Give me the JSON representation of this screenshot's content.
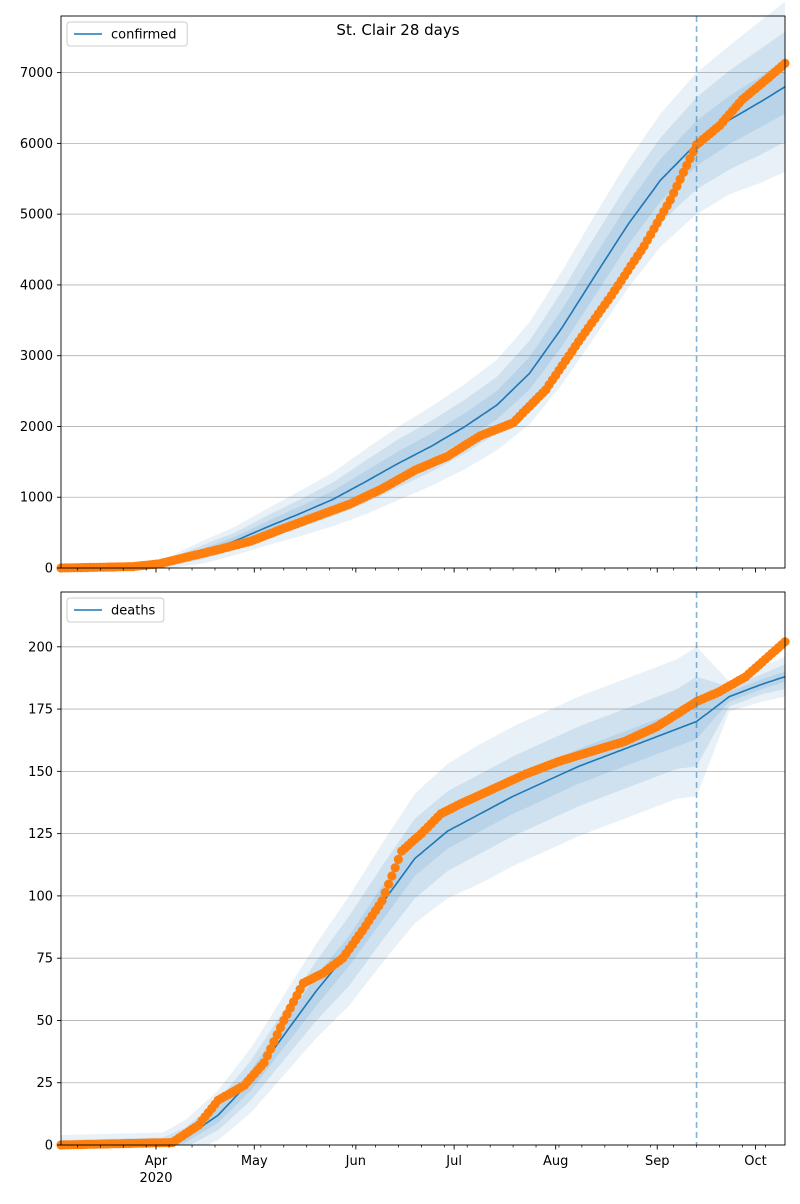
{
  "title": "St. Clair 28 days",
  "colors": {
    "model": "#1f77b4",
    "observed": "#ff7f0e",
    "band": "#1f77b4",
    "forecast_line": "#1f77b4",
    "grid": "#b0b0b0"
  },
  "x_axis": {
    "date_range": [
      "2020-03-03",
      "2020-10-10"
    ],
    "forecast_start": "2020-09-13",
    "month_ticks": [
      {
        "date": "2020-04-01",
        "label": "Apr",
        "sublabel": "2020"
      },
      {
        "date": "2020-05-01",
        "label": "May",
        "sublabel": ""
      },
      {
        "date": "2020-06-01",
        "label": "Jun",
        "sublabel": ""
      },
      {
        "date": "2020-07-01",
        "label": "Jul",
        "sublabel": ""
      },
      {
        "date": "2020-08-01",
        "label": "Aug",
        "sublabel": ""
      },
      {
        "date": "2020-09-01",
        "label": "Sep",
        "sublabel": ""
      },
      {
        "date": "2020-10-01",
        "label": "Oct",
        "sublabel": ""
      }
    ]
  },
  "chart_data": [
    {
      "type": "line",
      "name": "confirmed",
      "legend": "confirmed",
      "legend_position": "upper-left",
      "grid": "horizontal",
      "ylim": [
        0,
        7800
      ],
      "yticks": [
        0,
        1000,
        2000,
        3000,
        4000,
        5000,
        6000,
        7000
      ],
      "model": {
        "dates": [
          "2020-03-03",
          "2020-03-25",
          "2020-04-05",
          "2020-04-15",
          "2020-04-25",
          "2020-05-05",
          "2020-05-15",
          "2020-05-25",
          "2020-06-04",
          "2020-06-14",
          "2020-06-24",
          "2020-07-04",
          "2020-07-14",
          "2020-07-24",
          "2020-08-03",
          "2020-08-13",
          "2020-08-23",
          "2020-09-02",
          "2020-09-13",
          "2020-09-23",
          "2020-10-03",
          "2020-10-10"
        ],
        "values": [
          0,
          20,
          80,
          220,
          380,
          580,
          770,
          970,
          1220,
          1480,
          1720,
          1990,
          2300,
          2750,
          3400,
          4130,
          4850,
          5480,
          6000,
          6330,
          6600,
          6800
        ],
        "band_widths": [
          [
            5,
            10,
            25,
            50,
            60,
            80,
            100,
            120,
            150,
            170,
            180,
            190,
            200,
            230,
            260,
            280,
            290,
            300,
            320,
            340,
            360,
            380
          ],
          [
            10,
            20,
            50,
            100,
            120,
            160,
            200,
            240,
            300,
            340,
            360,
            380,
            400,
            460,
            520,
            560,
            580,
            600,
            650,
            700,
            750,
            780
          ],
          [
            15,
            30,
            80,
            160,
            200,
            260,
            320,
            380,
            460,
            520,
            560,
            600,
            640,
            720,
            800,
            860,
            900,
            940,
            1000,
            1050,
            1150,
            1200
          ]
        ]
      },
      "observed": {
        "dates": [
          "2020-03-03",
          "2020-03-25",
          "2020-04-02",
          "2020-04-10",
          "2020-04-20",
          "2020-04-30",
          "2020-05-10",
          "2020-05-20",
          "2020-05-30",
          "2020-06-09",
          "2020-06-19",
          "2020-06-29",
          "2020-07-09",
          "2020-07-19",
          "2020-07-29",
          "2020-08-08",
          "2020-08-18",
          "2020-08-28",
          "2020-09-05",
          "2020-09-13",
          "2020-09-20",
          "2020-09-27",
          "2020-10-04",
          "2020-10-10"
        ],
        "values": [
          0,
          20,
          60,
          150,
          260,
          380,
          560,
          730,
          900,
          1120,
          1380,
          1580,
          1870,
          2050,
          2520,
          3200,
          3850,
          4550,
          5200,
          5980,
          6250,
          6620,
          6890,
          7130
        ]
      }
    },
    {
      "type": "line",
      "name": "deaths",
      "legend": "deaths",
      "legend_position": "upper-left",
      "grid": "horizontal",
      "ylim": [
        0,
        222
      ],
      "yticks": [
        0,
        25,
        50,
        75,
        100,
        125,
        150,
        175,
        200
      ],
      "model": {
        "dates": [
          "2020-03-03",
          "2020-04-03",
          "2020-04-10",
          "2020-04-20",
          "2020-04-30",
          "2020-05-10",
          "2020-05-20",
          "2020-05-30",
          "2020-06-09",
          "2020-06-19",
          "2020-06-29",
          "2020-07-09",
          "2020-07-19",
          "2020-07-29",
          "2020-08-08",
          "2020-08-18",
          "2020-08-28",
          "2020-09-07",
          "2020-09-13",
          "2020-09-23",
          "2020-10-03",
          "2020-10-10"
        ],
        "values": [
          0,
          0,
          3,
          12,
          26,
          44,
          62,
          78,
          97,
          115,
          126,
          133,
          140,
          146,
          152,
          157,
          162,
          167,
          170,
          180,
          185,
          188
        ],
        "band_widths": [
          [
            1,
            1.5,
            2,
            3,
            4,
            5,
            6,
            6,
            7,
            7,
            7,
            7,
            7,
            7,
            7,
            7,
            7,
            7,
            7,
            2,
            2,
            2
          ],
          [
            2,
            3,
            4,
            6,
            8,
            10,
            12,
            14,
            15,
            16,
            16,
            16,
            16,
            16,
            16,
            16,
            16,
            16,
            18,
            4,
            4,
            5
          ],
          [
            4,
            5,
            7,
            10,
            13,
            16,
            19,
            22,
            24,
            26,
            27,
            28,
            28,
            28,
            28,
            28,
            28,
            28,
            30,
            6,
            7,
            8
          ]
        ]
      },
      "observed": {
        "dates": [
          "2020-03-03",
          "2020-04-06",
          "2020-04-14",
          "2020-04-20",
          "2020-04-28",
          "2020-05-04",
          "2020-05-10",
          "2020-05-16",
          "2020-05-22",
          "2020-05-28",
          "2020-06-03",
          "2020-06-09",
          "2020-06-15",
          "2020-06-21",
          "2020-06-27",
          "2020-07-03",
          "2020-07-13",
          "2020-07-23",
          "2020-08-02",
          "2020-08-12",
          "2020-08-22",
          "2020-09-01",
          "2020-09-13",
          "2020-09-20",
          "2020-09-28",
          "2020-10-04",
          "2020-10-10"
        ],
        "values": [
          0,
          1,
          8,
          18,
          24,
          33,
          50,
          65,
          69,
          75,
          86,
          98,
          118,
          125,
          133,
          137,
          143,
          149,
          154,
          158,
          162,
          168,
          178,
          182,
          188,
          195,
          202
        ]
      }
    }
  ]
}
